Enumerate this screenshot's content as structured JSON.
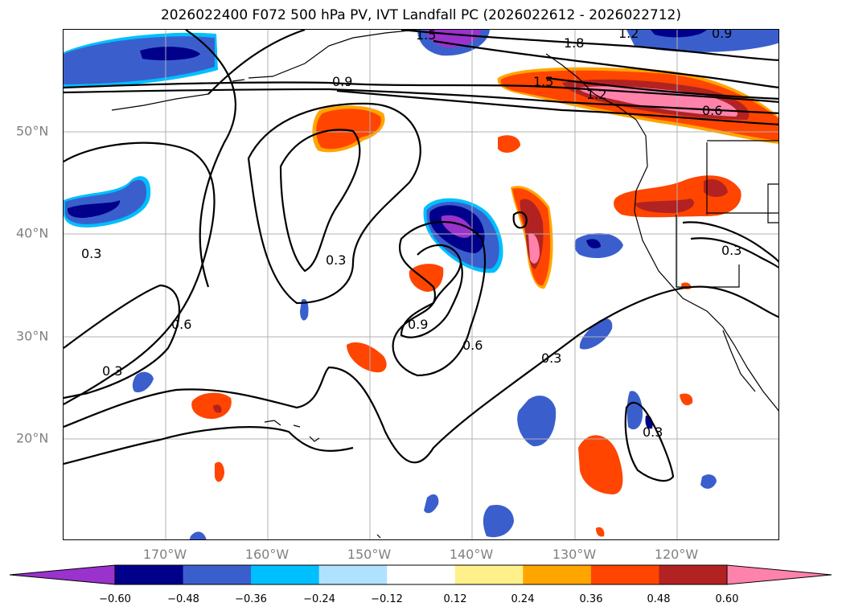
{
  "title": "2026022400 F072 500 hPa PV, IVT Landfall PC (2026022612 - 2026022712)",
  "map": {
    "projection": "plate-carree",
    "lon_range": [
      -180,
      -110
    ],
    "lat_range": [
      10,
      60
    ],
    "lon_labels": [
      "170°W",
      "160°W",
      "150°W",
      "140°W",
      "130°W",
      "120°W"
    ],
    "lat_labels": [
      "50°N",
      "40°N",
      "30°N",
      "20°N"
    ],
    "grid": true,
    "coastlines": true,
    "borders": true
  },
  "contours": {
    "color": "#000000",
    "labels": [
      "1.5",
      "1.8",
      "1.2",
      "0.9",
      "0.9",
      "1.5",
      "1.2",
      "0.6",
      "0.3",
      "0.3",
      "0.6",
      "0.3",
      "0.9",
      "0.6",
      "0.3",
      "0.3",
      "0.3"
    ]
  },
  "colorbar": {
    "extend": "both",
    "colors": [
      "#9a32cd",
      "#00008b",
      "#3a5fcd",
      "#00bfff",
      "#b0e2ff",
      "#ffffff",
      "#fff08b",
      "#ffa500",
      "#ff4500",
      "#b22222",
      "#ff82ab"
    ],
    "tick_labels": [
      "−0.60",
      "−0.48",
      "−0.36",
      "−0.24",
      "−0.12",
      "0.12",
      "0.24",
      "0.36",
      "0.48",
      "0.60"
    ]
  }
}
